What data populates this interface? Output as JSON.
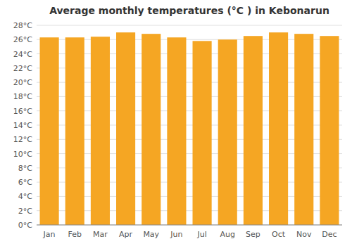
{
  "chart_data": {
    "type": "bar",
    "title": "Average monthly temperatures (°C ) in Kebonarun",
    "categories": [
      "Jan",
      "Feb",
      "Mar",
      "Apr",
      "May",
      "Jun",
      "Jul",
      "Aug",
      "Sep",
      "Oct",
      "Nov",
      "Dec"
    ],
    "values": [
      26.3,
      26.3,
      26.4,
      27.0,
      26.8,
      26.3,
      25.8,
      26.0,
      26.5,
      27.0,
      26.8,
      26.5
    ],
    "color": "#F5A623",
    "ylim": [
      0,
      28
    ],
    "yticks": [
      {
        "value": 0,
        "label": "0°C"
      },
      {
        "value": 2,
        "label": "2°C"
      },
      {
        "value": 4,
        "label": "4°C"
      },
      {
        "value": 6,
        "label": "6°C"
      },
      {
        "value": 8,
        "label": "8°C"
      },
      {
        "value": 10,
        "label": "10°C"
      },
      {
        "value": 12,
        "label": "12°C"
      },
      {
        "value": 14,
        "label": "14°C"
      },
      {
        "value": 16,
        "label": "16°C"
      },
      {
        "value": 18,
        "label": "18°C"
      },
      {
        "value": 20,
        "label": "20°C"
      },
      {
        "value": 22,
        "label": "22°C"
      },
      {
        "value": 24,
        "label": "24°C"
      },
      {
        "value": 26,
        "label": "26°C"
      },
      {
        "value": 28,
        "label": "28°C"
      }
    ],
    "grid": true
  }
}
